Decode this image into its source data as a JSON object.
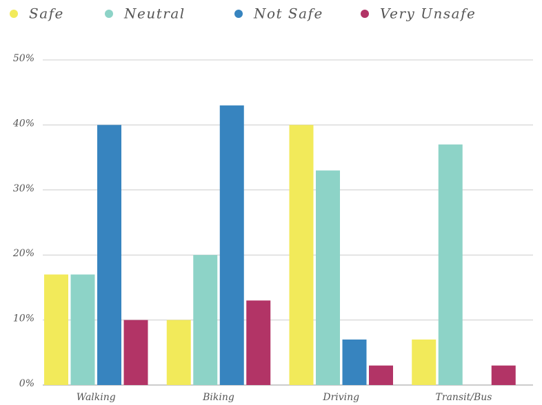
{
  "chart_data": {
    "type": "bar",
    "categories": [
      "Walking",
      "Biking",
      "Driving",
      "Transit/Bus"
    ],
    "series": [
      {
        "name": "Safe",
        "color": "#f2ea5a",
        "values": [
          17,
          10,
          40,
          7
        ]
      },
      {
        "name": "Neutral",
        "color": "#8dd3c7",
        "values": [
          17,
          20,
          33,
          37
        ]
      },
      {
        "name": "Not Safe",
        "color": "#3784bf",
        "values": [
          40,
          43,
          7,
          0
        ]
      },
      {
        "name": "Very Unsafe",
        "color": "#b23466",
        "values": [
          10,
          13,
          3,
          3
        ]
      }
    ],
    "ylim": [
      0,
      50
    ],
    "yticks": [
      {
        "value": 0,
        "label": "0%"
      },
      {
        "value": 10,
        "label": "10%"
      },
      {
        "value": 20,
        "label": "20%"
      },
      {
        "value": 30,
        "label": "30%"
      },
      {
        "value": 40,
        "label": "40%"
      },
      {
        "value": 50,
        "label": "50%"
      }
    ],
    "grid": true,
    "legend": "top"
  }
}
